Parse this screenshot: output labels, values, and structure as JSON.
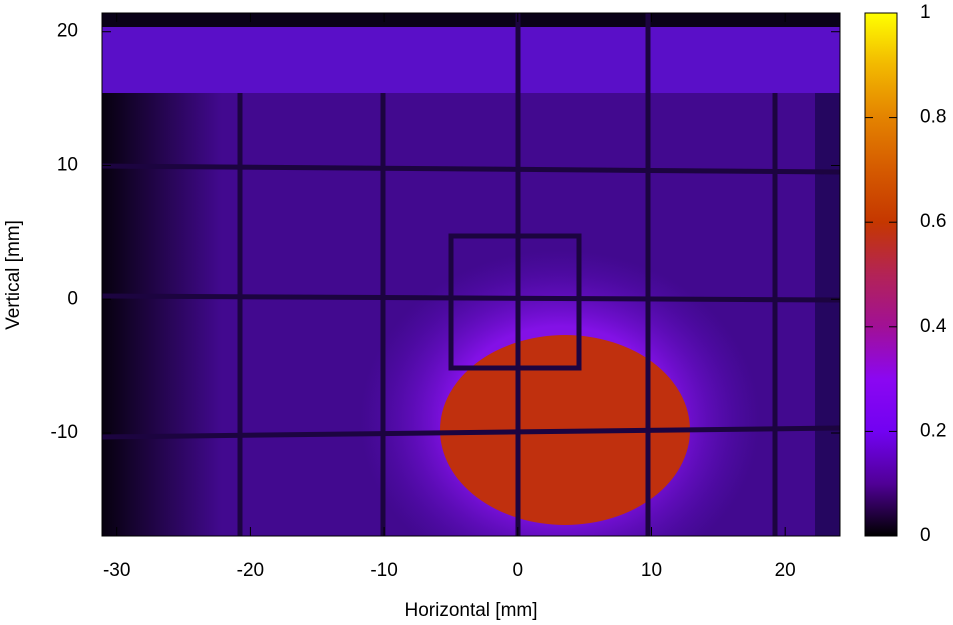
{
  "chart_data": {
    "type": "heatmap",
    "xlabel": "Horizontal [mm]",
    "ylabel": "Vertical [mm]",
    "xlim": [
      -31.1,
      24.1
    ],
    "xticks": [
      -30,
      -20,
      -10,
      0,
      10,
      20
    ],
    "ylim": [
      -17.7,
      21.4
    ],
    "yticks": [
      -10,
      0,
      10,
      20
    ],
    "colorbar": {
      "lim": [
        0,
        1
      ],
      "ticks": [
        0,
        0.2,
        0.4,
        0.6,
        0.8,
        1
      ],
      "colormap": [
        "#000000",
        "#500096",
        "#7202f2",
        "#8b07f2",
        "#a11096",
        "#b32356",
        "#c53700",
        "#d55a00",
        "#e48300",
        "#f2b800",
        "#ffff00"
      ]
    }
  }
}
